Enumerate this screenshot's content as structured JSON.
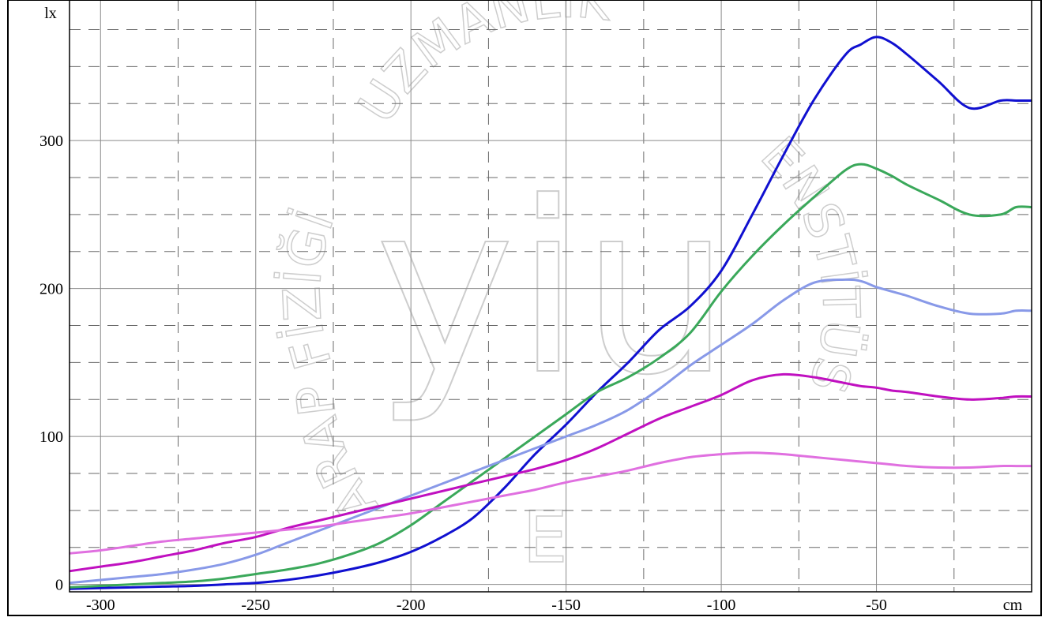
{
  "chart_data": {
    "type": "line",
    "xlabel": "cm",
    "ylabel": "lx",
    "xlim": [
      -310,
      0
    ],
    "ylim": [
      -5,
      395
    ],
    "x_ticks": [
      "-300",
      "-250",
      "-200",
      "-150",
      "-100",
      "-50"
    ],
    "y_ticks": [
      "0",
      "100",
      "200",
      "300"
    ],
    "grid": true,
    "x": [
      -310,
      -300,
      -290,
      -280,
      -270,
      -260,
      -250,
      -240,
      -230,
      -220,
      -210,
      -200,
      -190,
      -180,
      -170,
      -160,
      -150,
      -140,
      -130,
      -120,
      -110,
      -100,
      -90,
      -80,
      -70,
      -60,
      -55,
      -50,
      -45,
      -40,
      -30,
      -20,
      -10,
      -5,
      0
    ],
    "series": [
      {
        "color": "#1010d0",
        "values": [
          -3,
          -2.5,
          -2,
          -1.5,
          -1,
          0,
          1,
          3,
          6,
          10,
          15,
          22,
          32,
          45,
          65,
          88,
          108,
          130,
          150,
          172,
          188,
          212,
          250,
          290,
          328,
          358,
          365,
          370,
          366,
          358,
          340,
          322,
          327,
          327,
          327
        ]
      },
      {
        "color": "#3aa85a",
        "values": [
          -2,
          -1,
          0,
          1,
          2,
          4,
          7,
          10,
          14,
          20,
          28,
          40,
          55,
          70,
          85,
          100,
          115,
          130,
          140,
          153,
          170,
          198,
          222,
          243,
          262,
          280,
          284,
          281,
          276,
          270,
          260,
          250,
          250,
          255,
          255
        ]
      },
      {
        "color": "#8899e8",
        "values": [
          1,
          3,
          5,
          7,
          10,
          14,
          20,
          28,
          36,
          44,
          52,
          60,
          68,
          76,
          84,
          92,
          100,
          108,
          118,
          132,
          148,
          162,
          176,
          192,
          204,
          206,
          205,
          201,
          198,
          195,
          188,
          183,
          183,
          185,
          185
        ]
      },
      {
        "color": "#c010c0",
        "values": [
          9,
          12,
          15,
          19,
          23,
          28,
          32,
          38,
          43,
          48,
          53,
          58,
          63,
          68,
          73,
          78,
          84,
          92,
          102,
          112,
          120,
          128,
          138,
          142,
          140,
          136,
          134,
          133,
          131,
          130,
          127,
          125,
          126,
          127,
          127
        ]
      },
      {
        "color": "#e070e0",
        "values": [
          21,
          23,
          26,
          29,
          31,
          33,
          35,
          37,
          39,
          42,
          45,
          48,
          52,
          56,
          60,
          64,
          69,
          73,
          77,
          82,
          86,
          88,
          89,
          88,
          86,
          84,
          83,
          82,
          81,
          80,
          79,
          79,
          80,
          80,
          80
        ]
      }
    ]
  },
  "watermark": {
    "arc_top": "UZMANLIK",
    "arc_left": "FİZİĞİ",
    "arc_left_lower": "ARAP",
    "arc_right": "ENSTİTÜSÜ",
    "center": "yiu",
    "bottom": "E"
  }
}
